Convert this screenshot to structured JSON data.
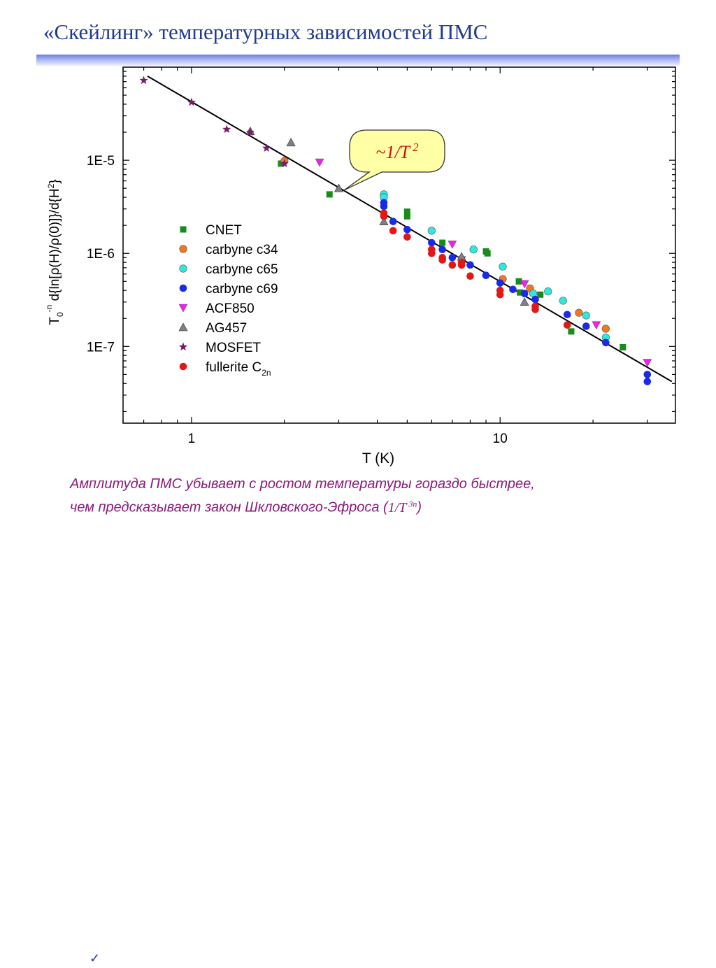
{
  "title": "«Скейлинг» температурных зависимостей ПМС",
  "note": {
    "line1": "Амплитуда ПМС убывает с ростом температуры гораздо быстрее,",
    "line2_prefix": "чем предсказывает закон Шкловского-Эфроса (",
    "formula_base": "1/T",
    "formula_exp": " 3n",
    "line2_suffix": ")"
  },
  "colors": {
    "title": "#1f3a8f",
    "note": "#8a1a7a",
    "CNET": "#1a8a1a",
    "carbyne_c34": "#f07820",
    "carbyne_c65": "#30e8e0",
    "carbyne_c69": "#1a2ae8",
    "ACF850": "#f01ef0",
    "AG457": "#808080",
    "MOSFET": "#7a1a6a",
    "fullerite": "#e01818"
  },
  "chart_data": {
    "type": "scatter",
    "xscale": "log",
    "yscale": "log",
    "xlim": [
      0.6,
      37
    ],
    "ylim": [
      1.5e-08,
      0.0001
    ],
    "xlabel": "T (K)",
    "ylabel_parts": [
      "T",
      "0",
      "-n",
      " d{ln[",
      "ρ",
      "(H)/",
      "ρ",
      "(0)]}/d{H",
      "2",
      "}"
    ],
    "x_ticks": [
      "1",
      "10"
    ],
    "y_ticks": [
      "1E-7",
      "1E-6",
      "1E-5"
    ],
    "callout": {
      "base": "~1/T",
      "exp": "2"
    },
    "fit_line": {
      "points": [
        [
          0.72,
          8e-05
        ],
        [
          36.0,
          4.2e-08
        ]
      ],
      "label": "~1/T 2"
    },
    "legend_position": "center-left",
    "series": [
      {
        "name": "CNET",
        "marker": "square",
        "color": "#1a8a1a",
        "points": [
          [
            1.95,
            9.2e-06
          ],
          [
            2.8,
            4.3e-06
          ],
          [
            5.0,
            2.5e-06
          ],
          [
            5.0,
            2.8e-06
          ],
          [
            6.5,
            1.3e-06
          ],
          [
            9.0,
            1.05e-06
          ],
          [
            9.1,
            1e-06
          ],
          [
            11.5,
            5e-07
          ],
          [
            11.6,
            3.8e-07
          ],
          [
            13.5,
            3.6e-07
          ],
          [
            17.0,
            1.45e-07
          ],
          [
            25.0,
            9.8e-08
          ]
        ]
      },
      {
        "name": "carbyne c34",
        "marker": "circle",
        "color": "#f07820",
        "points": [
          [
            2.0,
            9.8e-06
          ],
          [
            10.2,
            5.3e-07
          ],
          [
            12.5,
            4.2e-07
          ],
          [
            18.0,
            2.3e-07
          ],
          [
            22.0,
            1.55e-07
          ]
        ]
      },
      {
        "name": "carbyne c65",
        "marker": "circle",
        "color": "#30e8e0",
        "points": [
          [
            4.2,
            4.3e-06
          ],
          [
            4.2,
            4e-06
          ],
          [
            6.0,
            1.75e-06
          ],
          [
            8.2,
            1.1e-06
          ],
          [
            10.2,
            7.2e-07
          ],
          [
            12.8,
            3.7e-07
          ],
          [
            14.3,
            3.9e-07
          ],
          [
            16.0,
            3.1e-07
          ],
          [
            19.0,
            2.15e-07
          ],
          [
            22.0,
            1.25e-07
          ]
        ]
      },
      {
        "name": "carbyne c69",
        "marker": "circle",
        "color": "#1a2ae8",
        "points": [
          [
            4.2,
            3.5e-06
          ],
          [
            4.2,
            3.2e-06
          ],
          [
            4.5,
            2.2e-06
          ],
          [
            5.0,
            1.8e-06
          ],
          [
            6.0,
            1.3e-06
          ],
          [
            6.5,
            1.1e-06
          ],
          [
            7.0,
            9e-07
          ],
          [
            8.0,
            7.5e-07
          ],
          [
            9.0,
            5.8e-07
          ],
          [
            10.0,
            4.8e-07
          ],
          [
            11.0,
            4.1e-07
          ],
          [
            12.0,
            3.7e-07
          ],
          [
            13.0,
            3.2e-07
          ],
          [
            16.5,
            2.2e-07
          ],
          [
            19.0,
            1.65e-07
          ],
          [
            22.0,
            1.1e-07
          ],
          [
            30.0,
            5e-08
          ],
          [
            30.0,
            4.2e-08
          ]
        ]
      },
      {
        "name": "ACF850",
        "marker": "triangle-down",
        "color": "#f01ef0",
        "points": [
          [
            2.6,
            9.5e-06
          ],
          [
            7.0,
            1.25e-06
          ],
          [
            7.5,
            8.5e-07
          ],
          [
            12.0,
            4.7e-07
          ],
          [
            20.5,
            1.7e-07
          ],
          [
            30.0,
            6.7e-08
          ]
        ]
      },
      {
        "name": "AG457",
        "marker": "triangle-up",
        "color": "#808080",
        "points": [
          [
            1.55,
            2.05e-05
          ],
          [
            2.1,
            1.55e-05
          ],
          [
            3.0,
            5e-06
          ],
          [
            4.2,
            2.2e-06
          ],
          [
            7.5,
            9.2e-07
          ],
          [
            12.0,
            3e-07
          ]
        ]
      },
      {
        "name": "MOSFET",
        "marker": "star",
        "color": "#7a1a6a",
        "points": [
          [
            0.7,
            7.2e-05
          ],
          [
            1.0,
            4.2e-05
          ],
          [
            1.3,
            2.15e-05
          ],
          [
            1.55,
            2e-05
          ],
          [
            1.75,
            1.35e-05
          ],
          [
            2.0,
            9.2e-06
          ]
        ]
      },
      {
        "name": "fullerite C",
        "name_sub": "2n",
        "marker": "circle",
        "color": "#e01818",
        "points": [
          [
            4.2,
            2.7e-06
          ],
          [
            4.2,
            2.5e-06
          ],
          [
            4.5,
            1.75e-06
          ],
          [
            5.0,
            1.5e-06
          ],
          [
            6.0,
            1.1e-06
          ],
          [
            6.0,
            1e-06
          ],
          [
            6.5,
            9e-07
          ],
          [
            6.5,
            8.5e-07
          ],
          [
            7.0,
            7.5e-07
          ],
          [
            7.5,
            8e-07
          ],
          [
            7.5,
            7.5e-07
          ],
          [
            8.0,
            5.7e-07
          ],
          [
            10.0,
            4e-07
          ],
          [
            10.0,
            3.6e-07
          ],
          [
            13.0,
            2.7e-07
          ],
          [
            13.0,
            2.5e-07
          ],
          [
            16.5,
            1.7e-07
          ]
        ]
      }
    ]
  }
}
